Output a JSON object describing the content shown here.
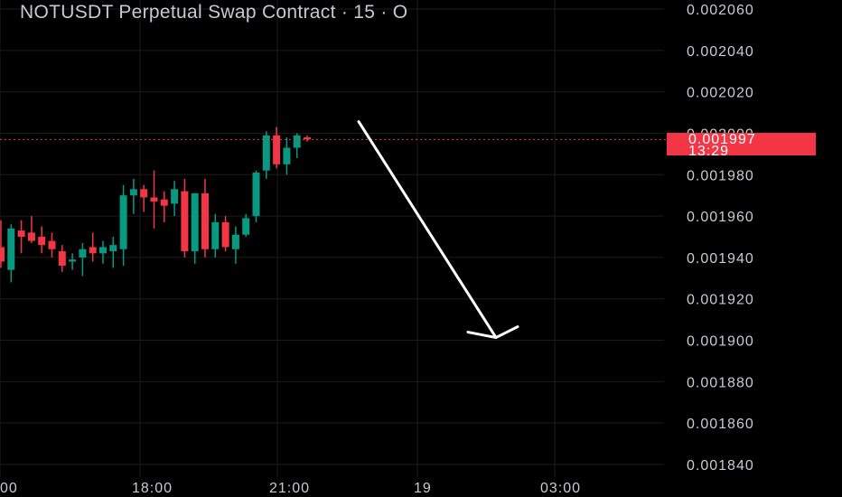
{
  "title": "NOTUSDT Perpetual Swap Contract · 15 · O",
  "colors": {
    "up": "#089981",
    "down": "#f23645",
    "grid": "#1c1c1c",
    "axis_text": "#c9cbd0",
    "bg": "#000000"
  },
  "last_price": {
    "value": "0.001997",
    "countdown": "13:29"
  },
  "chart_data": {
    "type": "candlestick",
    "y_axis": {
      "ticks": [
        "0.002060",
        "0.002040",
        "0.002020",
        "0.002000",
        "0.001980",
        "0.001960",
        "0.001940",
        "0.001920",
        "0.001900",
        "0.001880",
        "0.001860",
        "0.001840"
      ],
      "range": [
        0.001832,
        0.002064
      ]
    },
    "x_axis": {
      "ticks": [
        "00",
        "18:00",
        "21:00",
        "19",
        "03:00"
      ]
    },
    "candles": [
      {
        "o": 0.001945,
        "h": 0.001958,
        "l": 0.001935,
        "c": 0.001938
      },
      {
        "o": 0.001934,
        "h": 0.001956,
        "l": 0.001928,
        "c": 0.001954
      },
      {
        "o": 0.001953,
        "h": 0.001958,
        "l": 0.001942,
        "c": 0.00195
      },
      {
        "o": 0.001952,
        "h": 0.00196,
        "l": 0.001947,
        "c": 0.001948
      },
      {
        "o": 0.00195,
        "h": 0.001955,
        "l": 0.001942,
        "c": 0.001946
      },
      {
        "o": 0.001948,
        "h": 0.001952,
        "l": 0.00194,
        "c": 0.001944
      },
      {
        "o": 0.001943,
        "h": 0.001946,
        "l": 0.001933,
        "c": 0.001936
      },
      {
        "o": 0.001938,
        "h": 0.001942,
        "l": 0.001934,
        "c": 0.001939
      },
      {
        "o": 0.00194,
        "h": 0.001947,
        "l": 0.001931,
        "c": 0.001944
      },
      {
        "o": 0.001945,
        "h": 0.001952,
        "l": 0.001938,
        "c": 0.001942
      },
      {
        "o": 0.001942,
        "h": 0.001948,
        "l": 0.001937,
        "c": 0.001945
      },
      {
        "o": 0.001943,
        "h": 0.00195,
        "l": 0.001935,
        "c": 0.001946
      },
      {
        "o": 0.001944,
        "h": 0.001975,
        "l": 0.001936,
        "c": 0.00197
      },
      {
        "o": 0.00197,
        "h": 0.001978,
        "l": 0.001961,
        "c": 0.001973
      },
      {
        "o": 0.001973,
        "h": 0.001975,
        "l": 0.001962,
        "c": 0.001969
      },
      {
        "o": 0.001969,
        "h": 0.001982,
        "l": 0.001954,
        "c": 0.001967
      },
      {
        "o": 0.001968,
        "h": 0.001972,
        "l": 0.001957,
        "c": 0.001965
      },
      {
        "o": 0.001966,
        "h": 0.001977,
        "l": 0.00196,
        "c": 0.001973
      },
      {
        "o": 0.001972,
        "h": 0.001978,
        "l": 0.00194,
        "c": 0.001943
      },
      {
        "o": 0.001943,
        "h": 0.001971,
        "l": 0.001937,
        "c": 0.001971
      },
      {
        "o": 0.001971,
        "h": 0.001978,
        "l": 0.00194,
        "c": 0.001944
      },
      {
        "o": 0.001944,
        "h": 0.001961,
        "l": 0.00194,
        "c": 0.001957
      },
      {
        "o": 0.001957,
        "h": 0.00196,
        "l": 0.001943,
        "c": 0.001945
      },
      {
        "o": 0.001944,
        "h": 0.001955,
        "l": 0.001937,
        "c": 0.001951
      },
      {
        "o": 0.001951,
        "h": 0.001961,
        "l": 0.00195,
        "c": 0.001959
      },
      {
        "o": 0.00196,
        "h": 0.001982,
        "l": 0.001957,
        "c": 0.001981
      },
      {
        "o": 0.001982,
        "h": 0.002001,
        "l": 0.001978,
        "c": 0.001999
      },
      {
        "o": 0.001999,
        "h": 0.002003,
        "l": 0.001983,
        "c": 0.001985
      },
      {
        "o": 0.001985,
        "h": 0.001998,
        "l": 0.00198,
        "c": 0.001993
      },
      {
        "o": 0.001993,
        "h": 0.002,
        "l": 0.001988,
        "c": 0.001999
      },
      {
        "o": 0.001998,
        "h": 0.001999,
        "l": 0.001996,
        "c": 0.001997
      }
    ],
    "current_price": 0.001997,
    "annotation": {
      "type": "arrow",
      "from_price": 0.002003,
      "to_price": 0.0019,
      "direction": "down"
    }
  }
}
